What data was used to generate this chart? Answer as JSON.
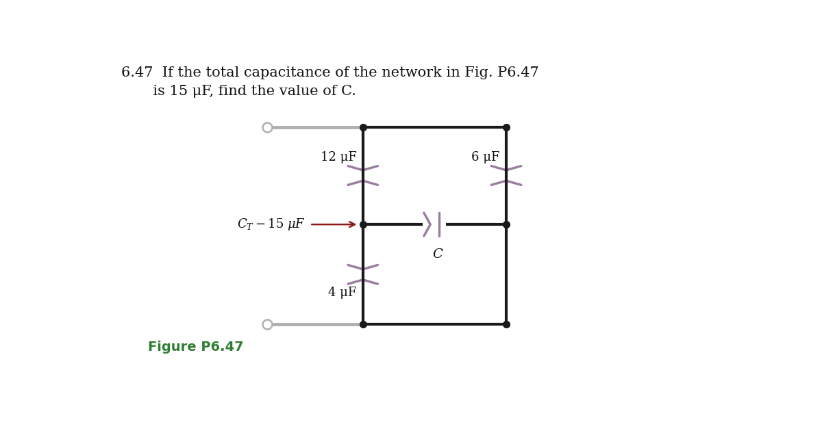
{
  "bg_color": "#ffffff",
  "wire_color": "#1a1a1a",
  "terminal_color": "#b0b0b0",
  "cap_color": "#9b7fa0",
  "arrow_color": "#8b1a1a",
  "figure_label_color": "#2e7d32",
  "title_line1": "6.47  If the total capacitance of the network in Fig. P6.47",
  "title_line2": "       is 15 μF, find the value of C.",
  "figure_label": "Figure P6.47",
  "cap12_label": "12 μF",
  "cap6_label": "6 μF",
  "cap4_label": "4 μF",
  "capC_label": "C",
  "ct_label": "C_T − 15 μF",
  "lw": 3.0,
  "cap_lw": 2.5
}
